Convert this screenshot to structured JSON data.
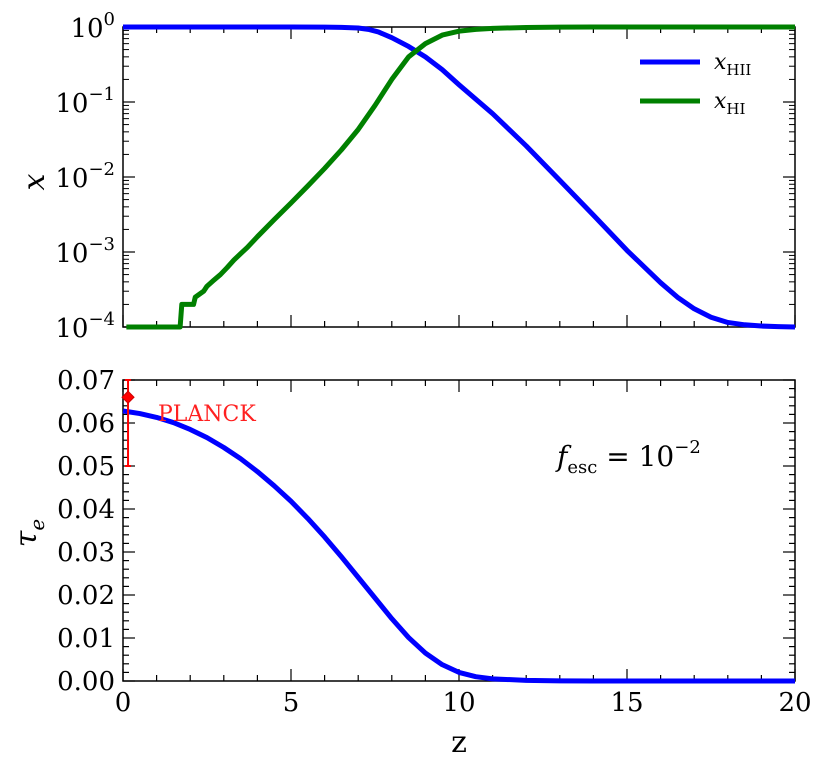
{
  "chart_data": [
    {
      "type": "line",
      "ylabel": "x",
      "yscale": "log",
      "xlim": [
        0,
        20
      ],
      "ylim": [
        0.0001,
        1
      ],
      "y_tick_labels": [
        {
          "base": "10",
          "exp": "0",
          "value": 1
        },
        {
          "base": "10",
          "exp": "−1",
          "value": 0.1
        },
        {
          "base": "10",
          "exp": "−2",
          "value": 0.01
        },
        {
          "base": "10",
          "exp": "−3",
          "value": 0.001
        },
        {
          "base": "10",
          "exp": "−4",
          "value": 0.0001
        }
      ],
      "legend_position": "top-right",
      "series": [
        {
          "name": "x_HII",
          "legend_main": "x",
          "legend_sub": "HII",
          "color": "#0000ff",
          "x": [
            0,
            1,
            2,
            3,
            4,
            5,
            6,
            6.5,
            7,
            7.3,
            7.6,
            8,
            8.5,
            9,
            9.5,
            10,
            11,
            12,
            13,
            14,
            15,
            16,
            16.5,
            17,
            17.5,
            18,
            18.5,
            19,
            19.5,
            20
          ],
          "y": [
            1,
            1,
            1,
            1,
            1,
            1,
            0.998,
            0.99,
            0.97,
            0.93,
            0.86,
            0.72,
            0.55,
            0.4,
            0.27,
            0.17,
            0.07,
            0.026,
            0.009,
            0.0031,
            0.00105,
            0.00039,
            0.00025,
            0.000175,
            0.000135,
            0.000115,
            0.000107,
            0.000103,
            0.000101,
            0.0001
          ]
        },
        {
          "name": "x_HI",
          "legend_main": "x",
          "legend_sub": "HI",
          "color": "#008000",
          "x": [
            0.1,
            0.8,
            1.7,
            1.75,
            2.1,
            2.15,
            2.4,
            2.5,
            2.7,
            2.9,
            3.1,
            3.3,
            3.5,
            3.7,
            4,
            4.5,
            5,
            5.5,
            6,
            6.5,
            7,
            7.5,
            8,
            8.5,
            9,
            9.5,
            10,
            10.5,
            11,
            12,
            13,
            14,
            15,
            16,
            17,
            18,
            19,
            20
          ],
          "y": [
            0.0001,
            0.0001,
            0.0001,
            0.0002,
            0.0002,
            0.00025,
            0.0003,
            0.00035,
            0.00042,
            0.0005,
            0.00062,
            0.00078,
            0.00095,
            0.00115,
            0.0016,
            0.0027,
            0.0045,
            0.0076,
            0.013,
            0.023,
            0.043,
            0.09,
            0.2,
            0.4,
            0.6,
            0.78,
            0.88,
            0.93,
            0.96,
            0.985,
            0.995,
            0.999,
            1,
            1,
            1,
            1,
            1,
            1
          ]
        }
      ]
    },
    {
      "type": "line",
      "xlabel": "z",
      "ylabel": "τ",
      "ylabel_sub": "e",
      "xlim": [
        0,
        20
      ],
      "ylim": [
        0,
        0.07
      ],
      "x_ticks": [
        0,
        5,
        10,
        15,
        20
      ],
      "y_ticks": [
        0,
        0.01,
        0.02,
        0.03,
        0.04,
        0.05,
        0.06,
        0.07
      ],
      "y_tick_labels": [
        "0.00",
        "0.01",
        "0.02",
        "0.03",
        "0.04",
        "0.05",
        "0.06",
        "0.07"
      ],
      "annotation": {
        "main": "f",
        "sub": "esc",
        "eq": " = 10",
        "sup": "−2"
      },
      "series": [
        {
          "name": "τ_e",
          "color": "#0000ff",
          "x": [
            0,
            0.5,
            1,
            1.5,
            2,
            2.5,
            3,
            3.5,
            4,
            4.5,
            5,
            5.5,
            6,
            6.5,
            7,
            7.5,
            8,
            8.5,
            9,
            9.5,
            10,
            10.5,
            11,
            12,
            13,
            14,
            15,
            16,
            17,
            18,
            19,
            20
          ],
          "y": [
            0.0628,
            0.0622,
            0.0613,
            0.0601,
            0.0585,
            0.0566,
            0.0543,
            0.0517,
            0.0487,
            0.0454,
            0.0418,
            0.0378,
            0.0335,
            0.0289,
            0.0241,
            0.0193,
            0.0145,
            0.0101,
            0.0065,
            0.0038,
            0.002,
            0.001,
            0.0005,
            0.00015,
            4e-05,
            1e-05,
            0,
            0,
            0,
            0,
            0,
            0
          ]
        }
      ],
      "planck": {
        "label": "PLANCK",
        "color": "#ff0000",
        "z": 0.15,
        "tau": 0.066,
        "err_low": 0.05,
        "err_high": 0.07
      }
    }
  ]
}
